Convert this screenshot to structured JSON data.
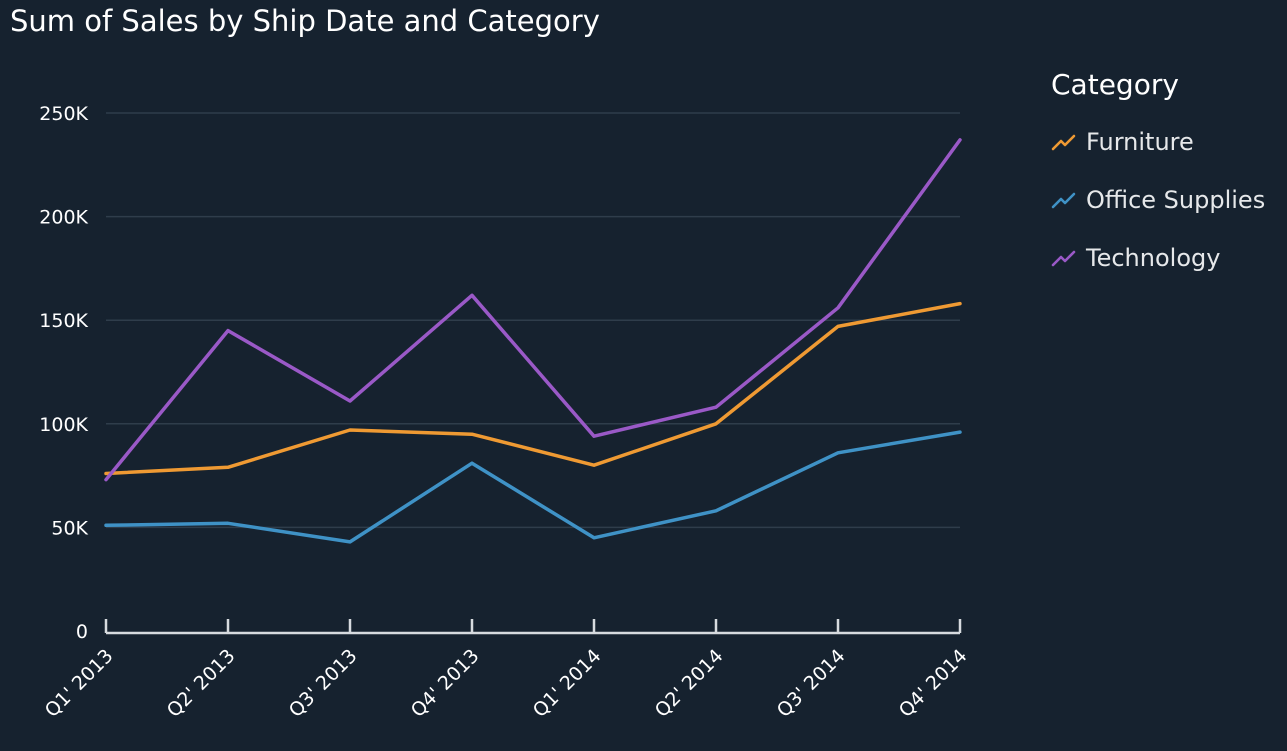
{
  "chart_data": {
    "type": "line",
    "title": "Sum of Sales by Ship Date and Category",
    "xlabel": "",
    "ylabel": "",
    "categories": [
      "Q1' 2013",
      "Q2' 2013",
      "Q3' 2013",
      "Q4' 2013",
      "Q1' 2014",
      "Q2' 2014",
      "Q3' 2014",
      "Q4' 2014"
    ],
    "ylim": [
      0,
      250000
    ],
    "yticks": [
      0,
      50000,
      100000,
      150000,
      200000,
      250000
    ],
    "ytick_labels": [
      "0",
      "50K",
      "100K",
      "150K",
      "200K",
      "250K"
    ],
    "grid": true,
    "legend": {
      "title": "Category",
      "placement": "right"
    },
    "series": [
      {
        "name": "Furniture",
        "color": "#ef9a33",
        "values": [
          76000,
          79000,
          97000,
          95000,
          80000,
          100000,
          147000,
          158000
        ]
      },
      {
        "name": "Office Supplies",
        "color": "#3f92c6",
        "values": [
          51000,
          52000,
          43000,
          81000,
          45000,
          58000,
          86000,
          96000
        ]
      },
      {
        "name": "Technology",
        "color": "#9a59c7",
        "values": [
          73000,
          145000,
          111000,
          162000,
          94000,
          108000,
          156000,
          237000
        ]
      }
    ]
  }
}
